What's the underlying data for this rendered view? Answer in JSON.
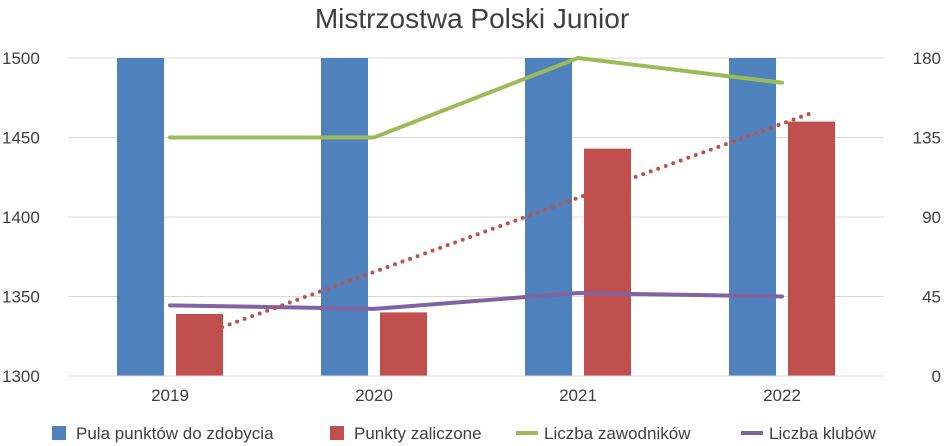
{
  "chart_data": {
    "type": "bar",
    "title": "Mistrzostwa Polski Junior",
    "categories": [
      "2019",
      "2020",
      "2021",
      "2022"
    ],
    "y_left": {
      "min": 1300,
      "max": 1500,
      "ticks": [
        "1300",
        "1350",
        "1400",
        "1450",
        "1500"
      ]
    },
    "y_right": {
      "min": 0,
      "max": 180,
      "ticks": [
        "0",
        "45",
        "90",
        "135",
        "180"
      ]
    },
    "series": [
      {
        "name": "Pula punktów do zdobycia",
        "kind": "bar",
        "axis": "left",
        "color": "#4F81BD",
        "values": [
          1500,
          1500,
          1500,
          1500
        ]
      },
      {
        "name": "Punkty zaliczone",
        "kind": "bar",
        "axis": "left",
        "color": "#C0504D",
        "values": [
          1339,
          1340,
          1443,
          1460
        ]
      },
      {
        "name": "Liczba zawodników",
        "kind": "line",
        "axis": "right",
        "color": "#9BBB59",
        "values": [
          135,
          135,
          180,
          166
        ]
      },
      {
        "name": "Liczba klubów",
        "kind": "line",
        "axis": "right",
        "color": "#8064A2",
        "values": [
          40,
          38,
          47,
          45
        ]
      }
    ],
    "trendline": {
      "series": "Punkty zaliczone",
      "kind": "linear",
      "style": "dotted",
      "color": "#C0504D"
    },
    "grid": true,
    "legend": "bottom"
  }
}
